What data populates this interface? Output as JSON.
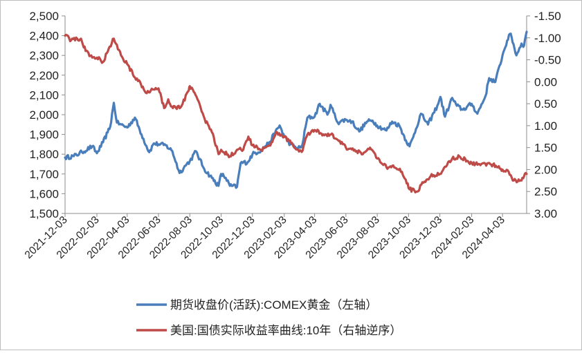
{
  "chart_data": {
    "type": "line",
    "x_ticks": [
      "2021-12-03",
      "2022-02-03",
      "2022-04-03",
      "2022-06-03",
      "2022-08-03",
      "2022-10-03",
      "2022-12-03",
      "2023-02-03",
      "2023-04-03",
      "2023-06-03",
      "2023-08-03",
      "2023-10-03",
      "2023-12-03",
      "2024-02-03",
      "2024-04-03"
    ],
    "x_range": [
      "2021-12-03",
      "2024-05-20"
    ],
    "left_axis": {
      "min": 1500,
      "max": 2500,
      "step": 100,
      "ticks": [
        "1,500",
        "1,600",
        "1,700",
        "1,800",
        "1,900",
        "2,000",
        "2,100",
        "2,200",
        "2,300",
        "2,400",
        "2,500"
      ]
    },
    "right_axis": {
      "min": -1.5,
      "max": 3.0,
      "step": 0.5,
      "inverted": true,
      "ticks": [
        "-1.50",
        "-1.00",
        "-0.50",
        "0.00",
        "0.50",
        "1.00",
        "1.50",
        "2.00",
        "2.50",
        "3.00"
      ]
    },
    "series": [
      {
        "name": "期货收盘价(活跃):COMEX黄金（左轴）",
        "axis": "left",
        "color": "#4a7ebb",
        "points": [
          [
            "2021-12-03",
            1783
          ],
          [
            "2021-12-20",
            1790
          ],
          [
            "2022-01-05",
            1810
          ],
          [
            "2022-01-25",
            1840
          ],
          [
            "2022-02-03",
            1805
          ],
          [
            "2022-02-15",
            1860
          ],
          [
            "2022-02-24",
            1910
          ],
          [
            "2022-03-01",
            1940
          ],
          [
            "2022-03-08",
            2060
          ],
          [
            "2022-03-14",
            1960
          ],
          [
            "2022-03-22",
            1950
          ],
          [
            "2022-04-03",
            1935
          ],
          [
            "2022-04-18",
            1985
          ],
          [
            "2022-05-01",
            1900
          ],
          [
            "2022-05-16",
            1810
          ],
          [
            "2022-05-25",
            1855
          ],
          [
            "2022-06-03",
            1850
          ],
          [
            "2022-06-17",
            1845
          ],
          [
            "2022-06-30",
            1815
          ],
          [
            "2022-07-14",
            1705
          ],
          [
            "2022-07-28",
            1750
          ],
          [
            "2022-08-03",
            1765
          ],
          [
            "2022-08-15",
            1815
          ],
          [
            "2022-08-31",
            1725
          ],
          [
            "2022-09-15",
            1680
          ],
          [
            "2022-09-28",
            1640
          ],
          [
            "2022-10-03",
            1700
          ],
          [
            "2022-10-12",
            1680
          ],
          [
            "2022-10-20",
            1640
          ],
          [
            "2022-11-03",
            1635
          ],
          [
            "2022-11-10",
            1755
          ],
          [
            "2022-11-24",
            1760
          ],
          [
            "2022-12-03",
            1800
          ],
          [
            "2022-12-20",
            1820
          ],
          [
            "2023-01-05",
            1860
          ],
          [
            "2023-01-25",
            1945
          ],
          [
            "2023-02-03",
            1890
          ],
          [
            "2023-02-15",
            1850
          ],
          [
            "2023-02-28",
            1830
          ],
          [
            "2023-03-09",
            1835
          ],
          [
            "2023-03-20",
            1985
          ],
          [
            "2023-04-03",
            1990
          ],
          [
            "2023-04-13",
            2055
          ],
          [
            "2023-04-28",
            2000
          ],
          [
            "2023-05-04",
            2050
          ],
          [
            "2023-05-18",
            1960
          ],
          [
            "2023-06-03",
            1975
          ],
          [
            "2023-06-15",
            1965
          ],
          [
            "2023-06-29",
            1915
          ],
          [
            "2023-07-14",
            1965
          ],
          [
            "2023-07-25",
            1970
          ],
          [
            "2023-08-03",
            1945
          ],
          [
            "2023-08-21",
            1920
          ],
          [
            "2023-09-01",
            1965
          ],
          [
            "2023-09-15",
            1945
          ],
          [
            "2023-09-28",
            1870
          ],
          [
            "2023-10-05",
            1840
          ],
          [
            "2023-10-12",
            1885
          ],
          [
            "2023-10-27",
            2005
          ],
          [
            "2023-11-10",
            1950
          ],
          [
            "2023-11-28",
            2045
          ],
          [
            "2023-12-04",
            2090
          ],
          [
            "2023-12-13",
            1990
          ],
          [
            "2023-12-27",
            2085
          ],
          [
            "2024-01-05",
            2045
          ],
          [
            "2024-01-17",
            2025
          ],
          [
            "2024-02-03",
            2055
          ],
          [
            "2024-02-14",
            2005
          ],
          [
            "2024-03-01",
            2095
          ],
          [
            "2024-03-08",
            2185
          ],
          [
            "2024-03-20",
            2165
          ],
          [
            "2024-04-03",
            2300
          ],
          [
            "2024-04-12",
            2375
          ],
          [
            "2024-04-19",
            2410
          ],
          [
            "2024-04-30",
            2300
          ],
          [
            "2024-05-10",
            2360
          ],
          [
            "2024-05-15",
            2350
          ],
          [
            "2024-05-20",
            2420
          ]
        ]
      },
      {
        "name": "美国:国债实际收益率曲线:10年（右轴逆序）",
        "axis": "right",
        "color": "#be4b48",
        "points": [
          [
            "2021-12-03",
            -1.05
          ],
          [
            "2021-12-15",
            -0.95
          ],
          [
            "2022-01-03",
            -0.98
          ],
          [
            "2022-01-12",
            -0.7
          ],
          [
            "2022-01-25",
            -0.55
          ],
          [
            "2022-02-03",
            -0.55
          ],
          [
            "2022-02-15",
            -0.45
          ],
          [
            "2022-02-28",
            -0.8
          ],
          [
            "2022-03-08",
            -0.98
          ],
          [
            "2022-03-22",
            -0.6
          ],
          [
            "2022-04-03",
            -0.4
          ],
          [
            "2022-04-18",
            -0.1
          ],
          [
            "2022-04-28",
            0.0
          ],
          [
            "2022-05-09",
            0.25
          ],
          [
            "2022-05-19",
            0.2
          ],
          [
            "2022-06-03",
            0.15
          ],
          [
            "2022-06-14",
            0.6
          ],
          [
            "2022-06-22",
            0.4
          ],
          [
            "2022-07-01",
            0.6
          ],
          [
            "2022-07-18",
            0.55
          ],
          [
            "2022-08-01",
            0.2
          ],
          [
            "2022-08-03",
            0.1
          ],
          [
            "2022-08-18",
            0.4
          ],
          [
            "2022-09-01",
            0.85
          ],
          [
            "2022-09-15",
            1.15
          ],
          [
            "2022-09-28",
            1.65
          ],
          [
            "2022-10-03",
            1.55
          ],
          [
            "2022-10-20",
            1.7
          ],
          [
            "2022-11-03",
            1.55
          ],
          [
            "2022-11-15",
            1.55
          ],
          [
            "2022-11-25",
            1.25
          ],
          [
            "2022-12-03",
            1.45
          ],
          [
            "2022-12-20",
            1.55
          ],
          [
            "2023-01-05",
            1.45
          ],
          [
            "2023-01-20",
            1.15
          ],
          [
            "2023-02-03",
            1.25
          ],
          [
            "2023-02-16",
            1.4
          ],
          [
            "2023-03-02",
            1.55
          ],
          [
            "2023-03-09",
            1.6
          ],
          [
            "2023-03-20",
            1.2
          ],
          [
            "2023-04-03",
            1.1
          ],
          [
            "2023-04-20",
            1.2
          ],
          [
            "2023-05-05",
            1.2
          ],
          [
            "2023-05-20",
            1.35
          ],
          [
            "2023-06-03",
            1.5
          ],
          [
            "2023-06-20",
            1.55
          ],
          [
            "2023-07-06",
            1.65
          ],
          [
            "2023-07-20",
            1.5
          ],
          [
            "2023-08-03",
            1.75
          ],
          [
            "2023-08-21",
            1.95
          ],
          [
            "2023-09-05",
            1.95
          ],
          [
            "2023-09-20",
            2.05
          ],
          [
            "2023-10-05",
            2.45
          ],
          [
            "2023-10-20",
            2.5
          ],
          [
            "2023-11-01",
            2.3
          ],
          [
            "2023-11-15",
            2.15
          ],
          [
            "2023-12-03",
            2.1
          ],
          [
            "2023-12-27",
            1.75
          ],
          [
            "2024-01-10",
            1.7
          ],
          [
            "2024-01-25",
            1.8
          ],
          [
            "2024-02-03",
            1.85
          ],
          [
            "2024-02-20",
            1.9
          ],
          [
            "2024-03-08",
            1.85
          ],
          [
            "2024-03-25",
            1.95
          ],
          [
            "2024-04-03",
            2.0
          ],
          [
            "2024-04-15",
            2.05
          ],
          [
            "2024-04-25",
            2.25
          ],
          [
            "2024-05-10",
            2.25
          ],
          [
            "2024-05-15",
            2.15
          ],
          [
            "2024-05-20",
            2.1
          ]
        ]
      }
    ],
    "legend": [
      "期货收盘价(活跃):COMEX黄金（左轴）",
      "美国:国债实际收益率曲线:10年（右轴逆序）"
    ],
    "legend_position": "bottom",
    "grid": false
  }
}
